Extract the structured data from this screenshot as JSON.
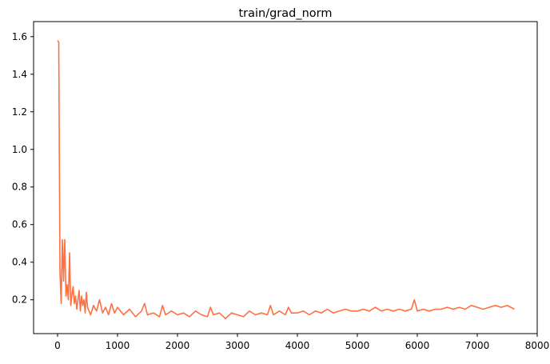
{
  "chart_data": {
    "type": "line",
    "title": "train/grad_norm",
    "xlabel": "",
    "ylabel": "",
    "xlim": [
      -400,
      8000
    ],
    "ylim": [
      0.02,
      1.68
    ],
    "xticks": [
      0,
      1000,
      2000,
      3000,
      4000,
      5000,
      6000,
      7000,
      8000
    ],
    "xtick_labels": [
      "0",
      "1000",
      "2000",
      "3000",
      "4000",
      "5000",
      "6000",
      "7000",
      "8000"
    ],
    "yticks": [
      0.2,
      0.4,
      0.6,
      0.8,
      1.0,
      1.2,
      1.4,
      1.6
    ],
    "ytick_labels": [
      "0.2",
      "0.4",
      "0.6",
      "0.8",
      "1.0",
      "1.2",
      "1.4",
      "1.6"
    ],
    "grid": false,
    "legend": "none",
    "series": [
      {
        "color": "#ff7043",
        "x": [
          0,
          20,
          40,
          60,
          80,
          100,
          120,
          140,
          160,
          180,
          200,
          220,
          240,
          260,
          280,
          300,
          320,
          340,
          360,
          380,
          400,
          420,
          440,
          460,
          480,
          500,
          550,
          600,
          650,
          700,
          750,
          800,
          850,
          900,
          950,
          1000,
          1100,
          1200,
          1300,
          1400,
          1450,
          1500,
          1600,
          1700,
          1750,
          1800,
          1900,
          2000,
          2100,
          2200,
          2300,
          2400,
          2500,
          2550,
          2600,
          2700,
          2800,
          2900,
          3000,
          3100,
          3200,
          3300,
          3400,
          3500,
          3550,
          3600,
          3700,
          3800,
          3850,
          3900,
          4000,
          4100,
          4200,
          4300,
          4400,
          4500,
          4600,
          4700,
          4800,
          4900,
          5000,
          5100,
          5200,
          5300,
          5400,
          5500,
          5600,
          5700,
          5800,
          5900,
          5950,
          6000,
          6100,
          6200,
          6300,
          6400,
          6500,
          6600,
          6700,
          6800,
          6900,
          7000,
          7100,
          7200,
          7300,
          7400,
          7500,
          7620
        ],
        "y": [
          1.58,
          1.57,
          0.35,
          0.18,
          0.52,
          0.3,
          0.52,
          0.22,
          0.28,
          0.2,
          0.45,
          0.17,
          0.23,
          0.27,
          0.18,
          0.22,
          0.15,
          0.2,
          0.25,
          0.14,
          0.22,
          0.17,
          0.2,
          0.13,
          0.24,
          0.16,
          0.12,
          0.17,
          0.14,
          0.2,
          0.13,
          0.16,
          0.12,
          0.18,
          0.13,
          0.16,
          0.12,
          0.15,
          0.11,
          0.14,
          0.18,
          0.12,
          0.13,
          0.11,
          0.17,
          0.12,
          0.14,
          0.12,
          0.13,
          0.11,
          0.14,
          0.12,
          0.11,
          0.16,
          0.12,
          0.13,
          0.1,
          0.13,
          0.12,
          0.11,
          0.14,
          0.12,
          0.13,
          0.12,
          0.17,
          0.12,
          0.14,
          0.12,
          0.16,
          0.13,
          0.13,
          0.14,
          0.12,
          0.14,
          0.13,
          0.15,
          0.13,
          0.14,
          0.15,
          0.14,
          0.14,
          0.15,
          0.14,
          0.16,
          0.14,
          0.15,
          0.14,
          0.15,
          0.14,
          0.15,
          0.2,
          0.14,
          0.15,
          0.14,
          0.15,
          0.15,
          0.16,
          0.15,
          0.16,
          0.15,
          0.17,
          0.16,
          0.15,
          0.16,
          0.17,
          0.16,
          0.17,
          0.15
        ]
      }
    ]
  }
}
